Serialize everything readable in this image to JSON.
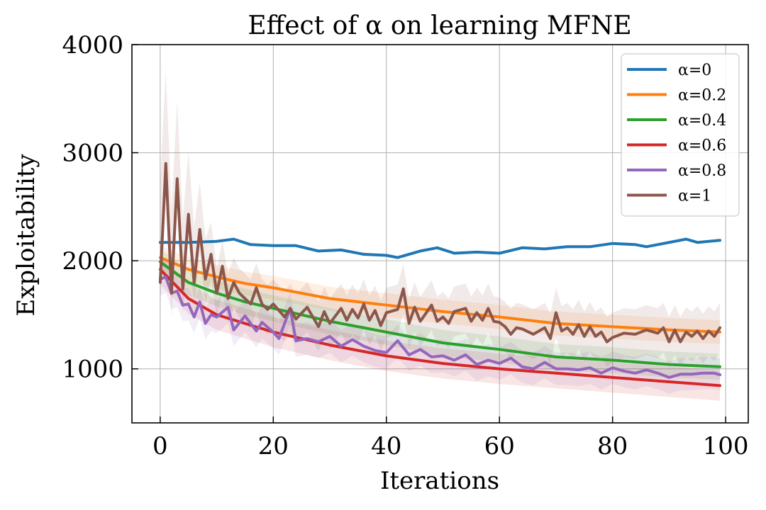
{
  "chart_data": {
    "type": "line",
    "title": "Effect of α on learning MFNE",
    "xlabel": "Iterations",
    "ylabel": "Exploitability",
    "xlim": [
      -5,
      104
    ],
    "ylim": [
      500,
      4000
    ],
    "xticks": [
      0,
      20,
      40,
      60,
      80,
      100
    ],
    "yticks": [
      1000,
      2000,
      3000,
      4000
    ],
    "xtick_labels": [
      "0",
      "20",
      "40",
      "60",
      "80",
      "100"
    ],
    "ytick_labels": [
      "1000",
      "2000",
      "3000",
      "4000"
    ],
    "grid": true,
    "legend_position": "top-right",
    "x_range": [
      0,
      99
    ],
    "series": [
      {
        "name": "α=0",
        "color": "#1f77b4",
        "points": [
          [
            0,
            2170
          ],
          [
            5,
            2170
          ],
          [
            10,
            2180
          ],
          [
            13,
            2200
          ],
          [
            16,
            2150
          ],
          [
            20,
            2140
          ],
          [
            24,
            2140
          ],
          [
            28,
            2090
          ],
          [
            32,
            2100
          ],
          [
            36,
            2060
          ],
          [
            40,
            2050
          ],
          [
            42,
            2030
          ],
          [
            46,
            2090
          ],
          [
            49,
            2120
          ],
          [
            52,
            2070
          ],
          [
            56,
            2080
          ],
          [
            60,
            2070
          ],
          [
            64,
            2120
          ],
          [
            68,
            2110
          ],
          [
            72,
            2130
          ],
          [
            76,
            2130
          ],
          [
            80,
            2160
          ],
          [
            84,
            2150
          ],
          [
            86,
            2130
          ],
          [
            88,
            2150
          ],
          [
            93,
            2200
          ],
          [
            95,
            2170
          ],
          [
            99,
            2190
          ]
        ],
        "band": 0
      },
      {
        "name": "α=0.2",
        "color": "#ff7f0e",
        "points": [
          [
            0,
            2030
          ],
          [
            5,
            1920
          ],
          [
            10,
            1850
          ],
          [
            15,
            1790
          ],
          [
            20,
            1750
          ],
          [
            30,
            1650
          ],
          [
            40,
            1590
          ],
          [
            50,
            1530
          ],
          [
            60,
            1480
          ],
          [
            70,
            1420
          ],
          [
            80,
            1390
          ],
          [
            90,
            1360
          ],
          [
            99,
            1340
          ]
        ],
        "band": 110
      },
      {
        "name": "α=0.4",
        "color": "#2ca02c",
        "points": [
          [
            0,
            1990
          ],
          [
            5,
            1800
          ],
          [
            10,
            1700
          ],
          [
            15,
            1620
          ],
          [
            20,
            1560
          ],
          [
            30,
            1440
          ],
          [
            40,
            1340
          ],
          [
            50,
            1240
          ],
          [
            60,
            1180
          ],
          [
            70,
            1110
          ],
          [
            80,
            1080
          ],
          [
            90,
            1040
          ],
          [
            99,
            1020
          ]
        ],
        "band": 120
      },
      {
        "name": "α=0.6",
        "color": "#d62728",
        "points": [
          [
            0,
            1920
          ],
          [
            5,
            1650
          ],
          [
            10,
            1500
          ],
          [
            15,
            1420
          ],
          [
            20,
            1340
          ],
          [
            30,
            1220
          ],
          [
            40,
            1120
          ],
          [
            50,
            1050
          ],
          [
            60,
            1000
          ],
          [
            70,
            960
          ],
          [
            80,
            920
          ],
          [
            90,
            880
          ],
          [
            99,
            845
          ]
        ],
        "band": 140
      },
      {
        "name": "α=0.8",
        "color": "#9467bd",
        "points": [
          [
            0,
            1830
          ],
          [
            1,
            1850
          ],
          [
            2,
            1700
          ],
          [
            3,
            1720
          ],
          [
            4,
            1590
          ],
          [
            5,
            1600
          ],
          [
            6,
            1480
          ],
          [
            7,
            1620
          ],
          [
            8,
            1420
          ],
          [
            9,
            1500
          ],
          [
            10,
            1480
          ],
          [
            12,
            1570
          ],
          [
            13,
            1360
          ],
          [
            15,
            1490
          ],
          [
            17,
            1350
          ],
          [
            18,
            1430
          ],
          [
            20,
            1340
          ],
          [
            21,
            1280
          ],
          [
            23,
            1560
          ],
          [
            24,
            1260
          ],
          [
            26,
            1280
          ],
          [
            28,
            1250
          ],
          [
            30,
            1300
          ],
          [
            32,
            1210
          ],
          [
            34,
            1270
          ],
          [
            36,
            1210
          ],
          [
            38,
            1170
          ],
          [
            40,
            1150
          ],
          [
            42,
            1260
          ],
          [
            44,
            1130
          ],
          [
            46,
            1180
          ],
          [
            48,
            1110
          ],
          [
            50,
            1120
          ],
          [
            52,
            1080
          ],
          [
            54,
            1130
          ],
          [
            56,
            1040
          ],
          [
            58,
            1080
          ],
          [
            60,
            1050
          ],
          [
            62,
            1100
          ],
          [
            64,
            1020
          ],
          [
            66,
            1000
          ],
          [
            68,
            1060
          ],
          [
            70,
            1000
          ],
          [
            72,
            1000
          ],
          [
            74,
            990
          ],
          [
            76,
            1010
          ],
          [
            78,
            960
          ],
          [
            80,
            1010
          ],
          [
            82,
            980
          ],
          [
            84,
            960
          ],
          [
            86,
            990
          ],
          [
            88,
            960
          ],
          [
            90,
            920
          ],
          [
            92,
            950
          ],
          [
            94,
            950
          ],
          [
            96,
            960
          ],
          [
            98,
            960
          ],
          [
            99,
            945
          ]
        ],
        "band": 150
      },
      {
        "name": "α=1",
        "color": "#8c564b",
        "points": [
          [
            0,
            1800
          ],
          [
            1,
            2900
          ],
          [
            2,
            1700
          ],
          [
            3,
            2760
          ],
          [
            4,
            1740
          ],
          [
            5,
            2430
          ],
          [
            6,
            1800
          ],
          [
            7,
            2290
          ],
          [
            8,
            1830
          ],
          [
            9,
            2060
          ],
          [
            10,
            1700
          ],
          [
            11,
            1950
          ],
          [
            12,
            1650
          ],
          [
            13,
            1800
          ],
          [
            14,
            1700
          ],
          [
            15,
            1650
          ],
          [
            16,
            1600
          ],
          [
            17,
            1750
          ],
          [
            18,
            1600
          ],
          [
            19,
            1550
          ],
          [
            20,
            1600
          ],
          [
            22,
            1480
          ],
          [
            23,
            1560
          ],
          [
            24,
            1460
          ],
          [
            26,
            1570
          ],
          [
            28,
            1390
          ],
          [
            29,
            1530
          ],
          [
            30,
            1420
          ],
          [
            32,
            1560
          ],
          [
            33,
            1450
          ],
          [
            34,
            1550
          ],
          [
            35,
            1470
          ],
          [
            36,
            1600
          ],
          [
            37,
            1450
          ],
          [
            38,
            1540
          ],
          [
            39,
            1400
          ],
          [
            40,
            1520
          ],
          [
            42,
            1550
          ],
          [
            43,
            1740
          ],
          [
            44,
            1420
          ],
          [
            45,
            1570
          ],
          [
            46,
            1440
          ],
          [
            48,
            1590
          ],
          [
            49,
            1440
          ],
          [
            50,
            1480
          ],
          [
            51,
            1420
          ],
          [
            52,
            1530
          ],
          [
            54,
            1560
          ],
          [
            55,
            1440
          ],
          [
            56,
            1520
          ],
          [
            57,
            1450
          ],
          [
            58,
            1560
          ],
          [
            59,
            1440
          ],
          [
            60,
            1430
          ],
          [
            61,
            1390
          ],
          [
            62,
            1320
          ],
          [
            63,
            1380
          ],
          [
            64,
            1370
          ],
          [
            66,
            1320
          ],
          [
            68,
            1380
          ],
          [
            69,
            1280
          ],
          [
            70,
            1520
          ],
          [
            71,
            1350
          ],
          [
            72,
            1380
          ],
          [
            73,
            1320
          ],
          [
            74,
            1410
          ],
          [
            75,
            1300
          ],
          [
            76,
            1390
          ],
          [
            77,
            1300
          ],
          [
            78,
            1340
          ],
          [
            79,
            1250
          ],
          [
            80,
            1290
          ],
          [
            82,
            1330
          ],
          [
            84,
            1320
          ],
          [
            86,
            1360
          ],
          [
            88,
            1330
          ],
          [
            89,
            1380
          ],
          [
            90,
            1250
          ],
          [
            91,
            1360
          ],
          [
            92,
            1250
          ],
          [
            93,
            1340
          ],
          [
            94,
            1300
          ],
          [
            95,
            1350
          ],
          [
            96,
            1280
          ],
          [
            97,
            1350
          ],
          [
            98,
            1300
          ],
          [
            99,
            1380
          ]
        ],
        "band": 230
      }
    ]
  }
}
